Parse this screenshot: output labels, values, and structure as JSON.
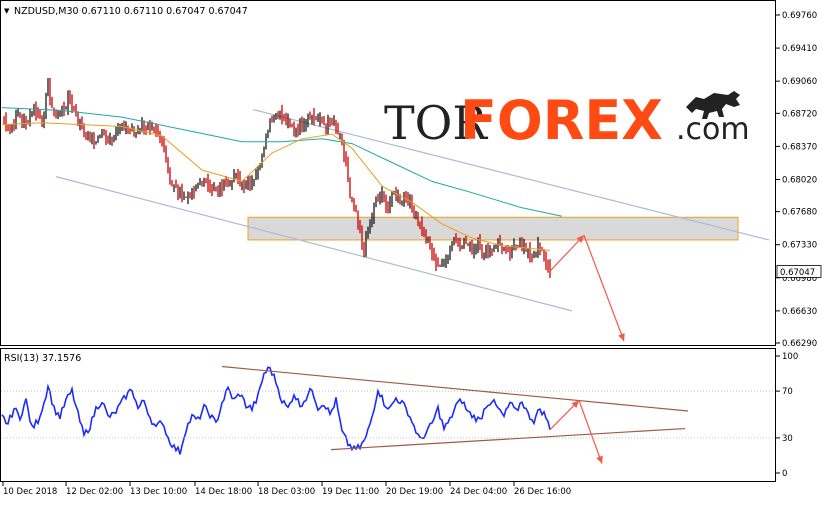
{
  "chart_data": [
    {
      "type": "line",
      "title": "NZDUSD,M30  0.67110 0.67110 0.67047 0.67047",
      "symbol_arrow": "▼",
      "watermark": {
        "left": "TOR",
        "right": "FOREX",
        "suffix": ".com"
      },
      "x_ticks": [
        "10 Dec 2018",
        "12 Dec 02:00",
        "13 Dec 10:00",
        "14 Dec 18:00",
        "18 Dec 03:00",
        "19 Dec 11:00",
        "20 Dec 19:00",
        "24 Dec 04:00",
        "26 Dec 16:00"
      ],
      "y_ticks": [
        0.6976,
        0.6941,
        0.6906,
        0.6872,
        0.6837,
        0.6802,
        0.6768,
        0.6733,
        0.6698,
        0.6663,
        0.6629
      ],
      "y_tick_labels": [
        "0.69760",
        "0.69410",
        "0.69060",
        "0.68720",
        "0.68370",
        "0.68020",
        "0.67680",
        "0.67330",
        "0.66980",
        "0.66630",
        "0.66290"
      ],
      "ylim": [
        0.6629,
        0.6985
      ],
      "last_price": "0.67047",
      "anchors": [
        [
          0,
          0.6868
        ],
        [
          8,
          0.6855
        ],
        [
          16,
          0.6872
        ],
        [
          24,
          0.686
        ],
        [
          32,
          0.688
        ],
        [
          40,
          0.6862
        ],
        [
          46,
          0.69
        ],
        [
          52,
          0.6868
        ],
        [
          60,
          0.6875
        ],
        [
          68,
          0.6888
        ],
        [
          76,
          0.6865
        ],
        [
          84,
          0.685
        ],
        [
          92,
          0.6842
        ],
        [
          100,
          0.6852
        ],
        [
          108,
          0.6845
        ],
        [
          116,
          0.6855
        ],
        [
          124,
          0.6858
        ],
        [
          132,
          0.685
        ],
        [
          140,
          0.6862
        ],
        [
          148,
          0.6852
        ],
        [
          156,
          0.6848
        ],
        [
          162,
          0.684
        ],
        [
          168,
          0.68
        ],
        [
          176,
          0.679
        ],
        [
          184,
          0.6782
        ],
        [
          192,
          0.679
        ],
        [
          200,
          0.6802
        ],
        [
          208,
          0.6795
        ],
        [
          216,
          0.6788
        ],
        [
          224,
          0.68
        ],
        [
          232,
          0.6805
        ],
        [
          240,
          0.6798
        ],
        [
          248,
          0.68
        ],
        [
          256,
          0.681
        ],
        [
          262,
          0.684
        ],
        [
          268,
          0.6865
        ],
        [
          276,
          0.6875
        ],
        [
          284,
          0.6862
        ],
        [
          292,
          0.6855
        ],
        [
          300,
          0.6862
        ],
        [
          308,
          0.687
        ],
        [
          316,
          0.6865
        ],
        [
          324,
          0.686
        ],
        [
          332,
          0.686
        ],
        [
          338,
          0.6845
        ],
        [
          344,
          0.682
        ],
        [
          348,
          0.678
        ],
        [
          352,
          0.677
        ],
        [
          356,
          0.6755
        ],
        [
          362,
          0.6725
        ],
        [
          368,
          0.6755
        ],
        [
          374,
          0.678
        ],
        [
          380,
          0.6785
        ],
        [
          386,
          0.6775
        ],
        [
          392,
          0.6788
        ],
        [
          398,
          0.678
        ],
        [
          404,
          0.6785
        ],
        [
          410,
          0.677
        ],
        [
          416,
          0.676
        ],
        [
          422,
          0.6742
        ],
        [
          428,
          0.673
        ],
        [
          434,
          0.6715
        ],
        [
          440,
          0.6708
        ],
        [
          446,
          0.6725
        ],
        [
          452,
          0.674
        ],
        [
          458,
          0.6735
        ],
        [
          464,
          0.6735
        ],
        [
          470,
          0.6728
        ],
        [
          476,
          0.6738
        ],
        [
          482,
          0.6722
        ],
        [
          488,
          0.6728
        ],
        [
          494,
          0.6735
        ],
        [
          500,
          0.673
        ],
        [
          506,
          0.6722
        ],
        [
          512,
          0.673
        ],
        [
          518,
          0.6738
        ],
        [
          524,
          0.6725
        ],
        [
          530,
          0.6722
        ],
        [
          536,
          0.673
        ],
        [
          542,
          0.672
        ],
        [
          548,
          0.6705
        ]
      ],
      "ma_fast": [
        [
          0,
          0.686
        ],
        [
          40,
          0.6862
        ],
        [
          80,
          0.686
        ],
        [
          120,
          0.6858
        ],
        [
          160,
          0.6848
        ],
        [
          200,
          0.6812
        ],
        [
          240,
          0.68
        ],
        [
          270,
          0.683
        ],
        [
          300,
          0.6845
        ],
        [
          330,
          0.685
        ],
        [
          350,
          0.6835
        ],
        [
          380,
          0.6795
        ],
        [
          410,
          0.6778
        ],
        [
          440,
          0.6755
        ],
        [
          470,
          0.674
        ],
        [
          500,
          0.6732
        ],
        [
          548,
          0.6727
        ]
      ],
      "ma_slow": [
        [
          0,
          0.6878
        ],
        [
          60,
          0.6875
        ],
        [
          120,
          0.6868
        ],
        [
          180,
          0.6855
        ],
        [
          240,
          0.6842
        ],
        [
          280,
          0.6842
        ],
        [
          320,
          0.6845
        ],
        [
          350,
          0.684
        ],
        [
          390,
          0.682
        ],
        [
          430,
          0.68
        ],
        [
          470,
          0.6788
        ],
        [
          520,
          0.6772
        ],
        [
          560,
          0.6763
        ]
      ],
      "channel_upper": [
        [
          253,
          0.6876
        ],
        [
          769,
          0.6738
        ]
      ],
      "channel_lower": [
        [
          56,
          0.6805
        ],
        [
          572,
          0.6663
        ]
      ],
      "support_zone": [
        0.6762,
        0.6738
      ],
      "support_zone_x": [
        248,
        738
      ],
      "forecast_path": [
        [
          548,
          0.6705
        ],
        [
          582,
          0.6743
        ],
        [
          622,
          0.6631
        ]
      ]
    },
    {
      "type": "line",
      "title": "RSI(13) 37.1576",
      "y_ticks": [
        100,
        70,
        30,
        0
      ],
      "y_tick_labels": [
        "100",
        "70",
        "30",
        "0"
      ],
      "ylim": [
        0,
        100
      ],
      "anchors": [
        [
          0,
          48
        ],
        [
          6,
          42
        ],
        [
          12,
          55
        ],
        [
          18,
          48
        ],
        [
          24,
          62
        ],
        [
          30,
          38
        ],
        [
          36,
          45
        ],
        [
          42,
          60
        ],
        [
          46,
          75
        ],
        [
          52,
          55
        ],
        [
          58,
          48
        ],
        [
          64,
          62
        ],
        [
          70,
          70
        ],
        [
          76,
          50
        ],
        [
          82,
          32
        ],
        [
          88,
          40
        ],
        [
          94,
          55
        ],
        [
          100,
          62
        ],
        [
          106,
          48
        ],
        [
          112,
          50
        ],
        [
          118,
          58
        ],
        [
          124,
          66
        ],
        [
          130,
          72
        ],
        [
          136,
          55
        ],
        [
          142,
          62
        ],
        [
          148,
          48
        ],
        [
          154,
          38
        ],
        [
          160,
          45
        ],
        [
          166,
          30
        ],
        [
          172,
          22
        ],
        [
          178,
          18
        ],
        [
          184,
          38
        ],
        [
          190,
          48
        ],
        [
          196,
          45
        ],
        [
          202,
          56
        ],
        [
          208,
          50
        ],
        [
          214,
          42
        ],
        [
          220,
          60
        ],
        [
          226,
          72
        ],
        [
          232,
          62
        ],
        [
          238,
          68
        ],
        [
          244,
          58
        ],
        [
          250,
          55
        ],
        [
          256,
          65
        ],
        [
          262,
          85
        ],
        [
          268,
          90
        ],
        [
          274,
          78
        ],
        [
          280,
          62
        ],
        [
          286,
          55
        ],
        [
          292,
          68
        ],
        [
          298,
          58
        ],
        [
          304,
          64
        ],
        [
          310,
          72
        ],
        [
          316,
          56
        ],
        [
          322,
          60
        ],
        [
          328,
          50
        ],
        [
          334,
          62
        ],
        [
          340,
          35
        ],
        [
          346,
          25
        ],
        [
          352,
          20
        ],
        [
          358,
          22
        ],
        [
          364,
          30
        ],
        [
          370,
          48
        ],
        [
          376,
          72
        ],
        [
          382,
          60
        ],
        [
          388,
          55
        ],
        [
          394,
          64
        ],
        [
          400,
          60
        ],
        [
          406,
          52
        ],
        [
          412,
          40
        ],
        [
          418,
          28
        ],
        [
          424,
          34
        ],
        [
          430,
          42
        ],
        [
          436,
          55
        ],
        [
          442,
          38
        ],
        [
          448,
          45
        ],
        [
          454,
          58
        ],
        [
          460,
          62
        ],
        [
          466,
          52
        ],
        [
          472,
          48
        ],
        [
          478,
          45
        ],
        [
          484,
          58
        ],
        [
          490,
          62
        ],
        [
          496,
          55
        ],
        [
          502,
          48
        ],
        [
          508,
          60
        ],
        [
          514,
          52
        ],
        [
          520,
          62
        ],
        [
          526,
          50
        ],
        [
          532,
          45
        ],
        [
          538,
          55
        ],
        [
          544,
          48
        ],
        [
          548,
          37
        ]
      ],
      "trendline_upper": [
        [
          222,
          91
        ],
        [
          688,
          53
        ]
      ],
      "trendline_lower": [
        [
          331,
          20
        ],
        [
          685,
          38
        ]
      ],
      "forecast_path": [
        [
          548,
          37
        ],
        [
          577,
          62
        ],
        [
          600,
          8
        ]
      ]
    }
  ]
}
